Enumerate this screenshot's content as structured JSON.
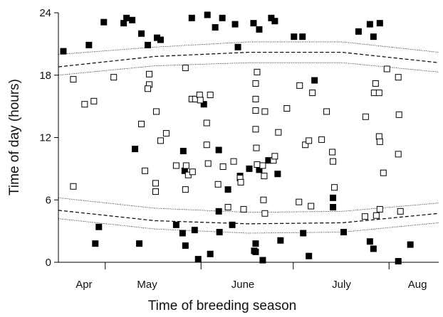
{
  "chart_data": {
    "type": "scatter",
    "xlabel": "Time of breeding season",
    "ylabel": "Time of day (hours)",
    "xlim": [
      0,
      134
    ],
    "ylim": [
      0,
      24
    ],
    "yticks": [
      0,
      6,
      12,
      18,
      24
    ],
    "month_labels": [
      {
        "value": 9,
        "label": "Apr"
      },
      {
        "value": 31.25,
        "label": "May"
      },
      {
        "value": 65,
        "label": "June"
      },
      {
        "value": 99.75,
        "label": "July"
      },
      {
        "value": 126.5,
        "label": "Aug"
      }
    ],
    "month_boundaries": [
      16.5,
      50.25,
      82.75,
      116.5
    ],
    "series": [
      {
        "color": "#000000",
        "fill": "#000000",
        "x": [
          1.75,
          10.75,
          16,
          23,
          24,
          26,
          29.25,
          31.5,
          34.75,
          36,
          47,
          52.5,
          55.25,
          57.75,
          62.25,
          63.25,
          68.75,
          70.75,
          75,
          76.25,
          83,
          86,
          105.75,
          109.75,
          111,
          113.25,
          14.25,
          13,
          28.5,
          41.5,
          43.75,
          44.75,
          48,
          49.25,
          53.5,
          56.75,
          61.25,
          56.5,
          69,
          69.5,
          69.5,
          72,
          78.25,
          86.25,
          88.25,
          96.75,
          96.75,
          100.5,
          109.75,
          111,
          119.75,
          124,
          27,
          44,
          44.5,
          56.5,
          59.75,
          64,
          67.25,
          70.75,
          74,
          77.25,
          90.25,
          51.25
        ],
        "values": [
          20.3,
          20.9,
          23.1,
          23.0,
          23.5,
          23.3,
          22.0,
          20.9,
          21.6,
          21.4,
          23.5,
          23.8,
          22.6,
          23.5,
          22.9,
          20.7,
          23.0,
          22.4,
          23.5,
          23.2,
          21.7,
          21.7,
          22.2,
          22.9,
          21.7,
          23.0,
          3.4,
          1.8,
          1.8,
          3.6,
          2.8,
          1.6,
          3.1,
          0.3,
          0.8,
          2.9,
          3.6,
          4.9,
          1.1,
          1.8,
          1.0,
          0.2,
          2.1,
          2.8,
          0.6,
          5.3,
          6.2,
          2.9,
          2.0,
          1.3,
          0.1,
          1.7,
          10.9,
          10.7,
          8.8,
          10.8,
          7.0,
          8.3,
          9.0,
          8.9,
          9.8,
          8.5,
          17.5,
          15.2
        ]
      },
      {
        "color": "#000000",
        "fill": "#ffffff",
        "x": [
          5.25,
          5.25,
          9.25,
          12.5,
          19.5,
          29.25,
          30.5,
          32,
          32,
          31.5,
          34.5,
          36,
          38,
          34.25,
          34.25,
          41.5,
          44.75,
          45,
          44.75,
          45.75,
          47.25,
          47,
          48.25,
          49.75,
          50,
          52.25,
          52.25,
          52.75,
          53.5,
          56.25,
          58,
          59.75,
          61.75,
          64,
          64.25,
          65.25,
          70,
          69.5,
          69.5,
          69.5,
          69.5,
          69.75,
          70,
          72,
          72.5,
          72.25,
          72.75,
          72.75,
          75.75,
          76.25,
          77.5,
          80.5,
          84.75,
          85,
          87,
          88.25,
          89,
          89.5,
          92.75,
          94.5,
          96.5,
          96.75,
          97.25,
          108.25,
          108,
          111.75,
          111.25,
          113,
          112,
          113.25,
          113,
          113.25,
          114.5,
          115.75,
          119.75,
          120,
          119.75,
          120.5
        ],
        "values": [
          7.3,
          17.6,
          15.2,
          15.5,
          17.8,
          13.3,
          8.8,
          18.1,
          17.1,
          16.7,
          14.5,
          11.7,
          12.4,
          7.6,
          6.8,
          9.3,
          18.7,
          9.3,
          7.0,
          8.4,
          8.7,
          15.7,
          15.7,
          16.1,
          15.6,
          13.4,
          11.3,
          9.5,
          16.1,
          7.5,
          9.2,
          5.3,
          9.7,
          8.1,
          7.7,
          5.1,
          18.3,
          17.2,
          15.7,
          14.6,
          12.8,
          11.0,
          9.4,
          9.3,
          8.3,
          6.0,
          14.5,
          4.7,
          9.8,
          10.2,
          12.5,
          14.8,
          5.8,
          17.0,
          11.3,
          11.7,
          5.4,
          16.3,
          11.8,
          14.5,
          10.6,
          9.7,
          7.2,
          14.0,
          4.4,
          17.2,
          16.3,
          16.3,
          4.5,
          5.1,
          12.1,
          11.6,
          8.6,
          18.6,
          17.8,
          14.2,
          10.4,
          4.9
        ]
      }
    ],
    "curves": [
      {
        "style": "dotted",
        "color": "#000000",
        "x": [
          0,
          34,
          67,
          100,
          134
        ],
        "values": [
          20.0,
          20.7,
          21.2,
          21.2,
          20.2
        ]
      },
      {
        "style": "dashed",
        "color": "#000000",
        "x": [
          0,
          34,
          67,
          100,
          134
        ],
        "values": [
          18.8,
          19.8,
          20.2,
          20.2,
          19.2
        ]
      },
      {
        "style": "dotted",
        "color": "#000000",
        "x": [
          0,
          34,
          67,
          100,
          134
        ],
        "values": [
          18.0,
          18.9,
          19.2,
          19.2,
          18.3
        ]
      },
      {
        "style": "dotted",
        "color": "#000000",
        "x": [
          0,
          34,
          67,
          100,
          134
        ],
        "values": [
          6.2,
          5.2,
          4.8,
          4.9,
          5.7
        ]
      },
      {
        "style": "dashed",
        "color": "#000000",
        "x": [
          0,
          34,
          67,
          100,
          134
        ],
        "values": [
          5.0,
          4.0,
          3.7,
          3.8,
          4.7
        ]
      },
      {
        "style": "dotted",
        "color": "#000000",
        "x": [
          0,
          34,
          67,
          100,
          134
        ],
        "values": [
          4.2,
          3.2,
          2.8,
          2.9,
          3.8
        ]
      }
    ]
  }
}
